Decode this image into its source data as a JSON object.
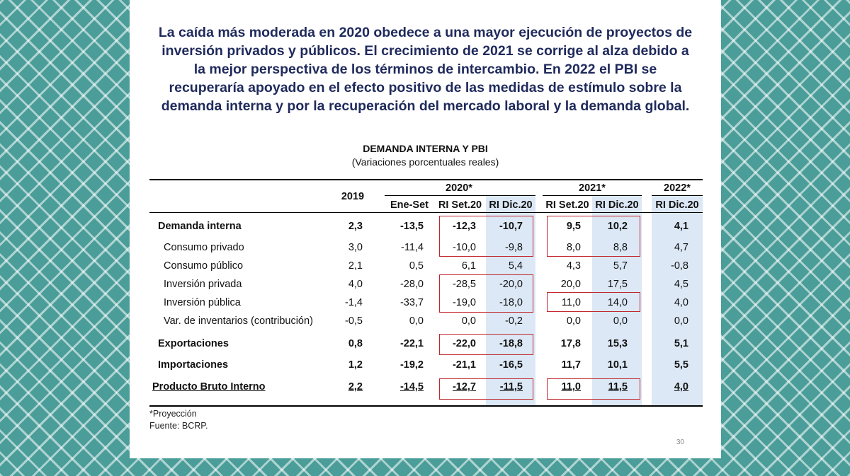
{
  "headline": {
    "lines": [
      "La caída más moderada en 2020 obedece a una mayor ejecución de proyectos de",
      "inversión privados y públicos. El crecimiento de 2021 se corrige al alza debido a",
      "la mejor perspectiva de los términos de intercambio. En 2022 el PBI se",
      "recuperaría apoyado en el efecto positivo de las medidas de estímulo sobre la",
      "demanda interna y por la recuperación del mercado laboral y la demanda global."
    ]
  },
  "table": {
    "title": "DEMANDA INTERNA Y PBI",
    "subtitle": "(Variaciones porcentuales reales)",
    "year_headers": [
      "2019",
      "2020*",
      "2021*",
      "2022*"
    ],
    "sub_headers": [
      "Ene-Set",
      "RI Set.20",
      "RI Dic.20",
      "RI Set.20",
      "RI Dic.20",
      "RI Dic.20"
    ],
    "rows": [
      {
        "label": "Demanda interna",
        "values": [
          "2,3",
          "-13,5",
          "-12,3",
          "-10,7",
          "9,5",
          "10,2",
          "4,1"
        ]
      },
      {
        "label": "Consumo privado",
        "values": [
          "3,0",
          "-11,4",
          "-10,0",
          "-9,8",
          "8,0",
          "8,8",
          "4,7"
        ]
      },
      {
        "label": "Consumo público",
        "values": [
          "2,1",
          "0,5",
          "6,1",
          "5,4",
          "4,3",
          "5,7",
          "-0,8"
        ]
      },
      {
        "label": "Inversión privada",
        "values": [
          "4,0",
          "-28,0",
          "-28,5",
          "-20,0",
          "20,0",
          "17,5",
          "4,5"
        ]
      },
      {
        "label": "Inversión pública",
        "values": [
          "-1,4",
          "-33,7",
          "-19,0",
          "-18,0",
          "11,0",
          "14,0",
          "4,0"
        ]
      },
      {
        "label": "Var. de inventarios (contribución)",
        "values": [
          "-0,5",
          "0,0",
          "0,0",
          "-0,2",
          "0,0",
          "0,0",
          "0,0"
        ]
      },
      {
        "label": "Exportaciones",
        "values": [
          "0,8",
          "-22,1",
          "-22,0",
          "-18,8",
          "17,8",
          "15,3",
          "5,1"
        ]
      },
      {
        "label": "Importaciones",
        "values": [
          "1,2",
          "-19,2",
          "-21,1",
          "-16,5",
          "11,7",
          "10,1",
          "5,5"
        ]
      },
      {
        "label": "Producto Bruto Interno",
        "values": [
          "2,2",
          "-14,5",
          "-12,7",
          "-11,5",
          "11,0",
          "11,5",
          "4,0"
        ]
      }
    ]
  },
  "footnotes": {
    "note": "*Proyección",
    "source": "Fuente: BCRP."
  },
  "page_number": "30",
  "colors": {
    "headline": "#1f2a5c",
    "highlight_box": "#c0282e",
    "shaded_column": "#dce8f5",
    "background": "#4a9d99"
  }
}
